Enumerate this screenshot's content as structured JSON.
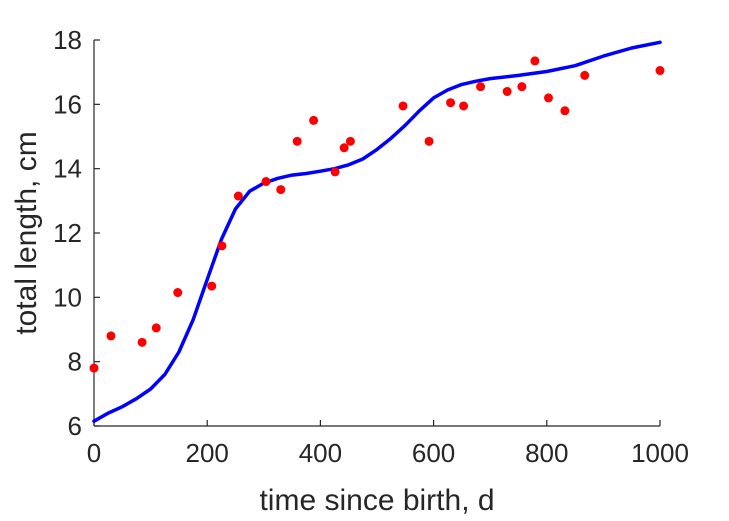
{
  "chart_data": {
    "type": "scatter",
    "xlabel": "time since birth, d",
    "ylabel": "total length, cm",
    "xlim": [
      0,
      1000
    ],
    "ylim": [
      6,
      18
    ],
    "xticks": [
      0,
      200,
      400,
      600,
      800,
      1000
    ],
    "yticks": [
      6,
      8,
      10,
      12,
      14,
      16,
      18
    ],
    "xtick_labels": [
      "0",
      "200",
      "400",
      "600",
      "800",
      "1000"
    ],
    "ytick_labels": [
      "6",
      "8",
      "10",
      "12",
      "14",
      "16",
      "18"
    ],
    "grid": false,
    "series": [
      {
        "kind": "scatter",
        "color": "#ff0000",
        "points": [
          [
            0,
            7.8
          ],
          [
            30,
            8.8
          ],
          [
            85,
            8.6
          ],
          [
            110,
            9.05
          ],
          [
            148,
            10.15
          ],
          [
            208,
            10.35
          ],
          [
            226,
            11.6
          ],
          [
            255,
            13.15
          ],
          [
            304,
            13.6
          ],
          [
            330,
            13.35
          ],
          [
            359,
            14.85
          ],
          [
            388,
            15.5
          ],
          [
            426,
            13.9
          ],
          [
            442,
            14.65
          ],
          [
            453,
            14.85
          ],
          [
            546,
            15.95
          ],
          [
            592,
            14.85
          ],
          [
            630,
            16.05
          ],
          [
            653,
            15.95
          ],
          [
            683,
            16.55
          ],
          [
            730,
            16.4
          ],
          [
            756,
            16.55
          ],
          [
            779,
            17.35
          ],
          [
            803,
            16.2
          ],
          [
            832,
            15.8
          ],
          [
            867,
            16.9
          ],
          [
            1000,
            17.05
          ]
        ]
      },
      {
        "kind": "line",
        "color": "#0000ff",
        "points": [
          [
            0,
            6.15
          ],
          [
            25,
            6.4
          ],
          [
            50,
            6.6
          ],
          [
            75,
            6.85
          ],
          [
            100,
            7.15
          ],
          [
            125,
            7.6
          ],
          [
            150,
            8.3
          ],
          [
            175,
            9.3
          ],
          [
            200,
            10.55
          ],
          [
            225,
            11.8
          ],
          [
            250,
            12.75
          ],
          [
            275,
            13.3
          ],
          [
            300,
            13.55
          ],
          [
            325,
            13.7
          ],
          [
            350,
            13.8
          ],
          [
            375,
            13.85
          ],
          [
            400,
            13.92
          ],
          [
            425,
            14.0
          ],
          [
            450,
            14.12
          ],
          [
            475,
            14.3
          ],
          [
            500,
            14.6
          ],
          [
            525,
            14.95
          ],
          [
            550,
            15.35
          ],
          [
            575,
            15.8
          ],
          [
            600,
            16.2
          ],
          [
            625,
            16.45
          ],
          [
            650,
            16.62
          ],
          [
            675,
            16.72
          ],
          [
            700,
            16.8
          ],
          [
            750,
            16.9
          ],
          [
            800,
            17.02
          ],
          [
            850,
            17.2
          ],
          [
            900,
            17.5
          ],
          [
            950,
            17.75
          ],
          [
            1000,
            17.93
          ]
        ]
      }
    ]
  }
}
